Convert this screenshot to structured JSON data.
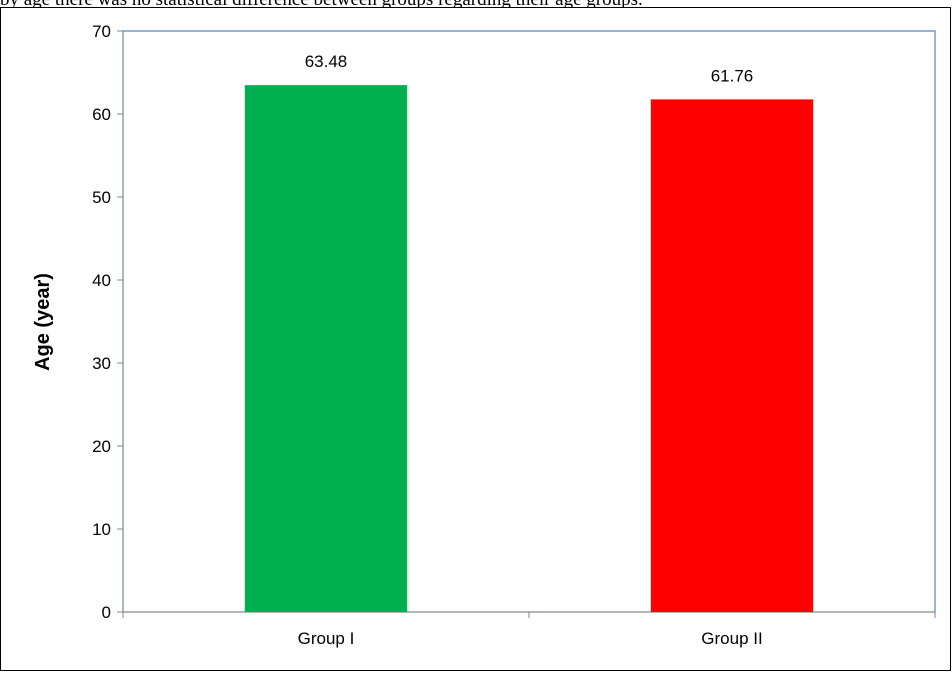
{
  "caption": "by age there was no statistical difference between groups regarding their age groups.",
  "chart_data": {
    "type": "bar",
    "title": "",
    "xlabel": "",
    "ylabel": "Age (year)",
    "ylim": [
      0,
      70
    ],
    "yticks": [
      0,
      10,
      20,
      30,
      40,
      50,
      60,
      70
    ],
    "categories": [
      "Group I",
      "Group II"
    ],
    "values": [
      63.48,
      61.76
    ],
    "data_labels": [
      "63.48",
      "61.76"
    ],
    "colors": [
      "#00B050",
      "#FF0000"
    ],
    "grid": false,
    "legend": "none"
  }
}
